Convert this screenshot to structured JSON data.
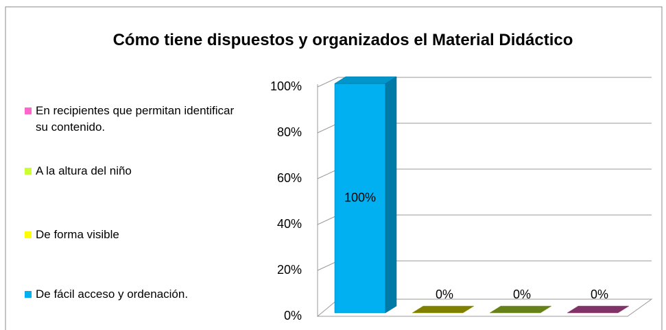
{
  "chart_data": {
    "type": "bar3d",
    "title": "Cómo tiene dispuestos y organizados el  Material Didáctico",
    "categories": [
      "De fácil acceso y ordenación.",
      "De forma visible",
      "A la altura del niño",
      "En recipientes que permitan identificar su contenido."
    ],
    "values": [
      100,
      0,
      0,
      0
    ],
    "value_labels": [
      "100%",
      "0%",
      "0%",
      "0%"
    ],
    "colors": [
      "#00b0f0",
      "#ffff00",
      "#ccff33",
      "#ff66cc"
    ],
    "ylim": [
      0,
      100
    ],
    "yticks": [
      {
        "value": 0,
        "label": "0%"
      },
      {
        "value": 20,
        "label": "20%"
      },
      {
        "value": 40,
        "label": "40%"
      },
      {
        "value": 60,
        "label": "60%"
      },
      {
        "value": 80,
        "label": "80%"
      },
      {
        "value": 100,
        "label": "100%"
      }
    ],
    "grid": true,
    "legend": "left"
  }
}
